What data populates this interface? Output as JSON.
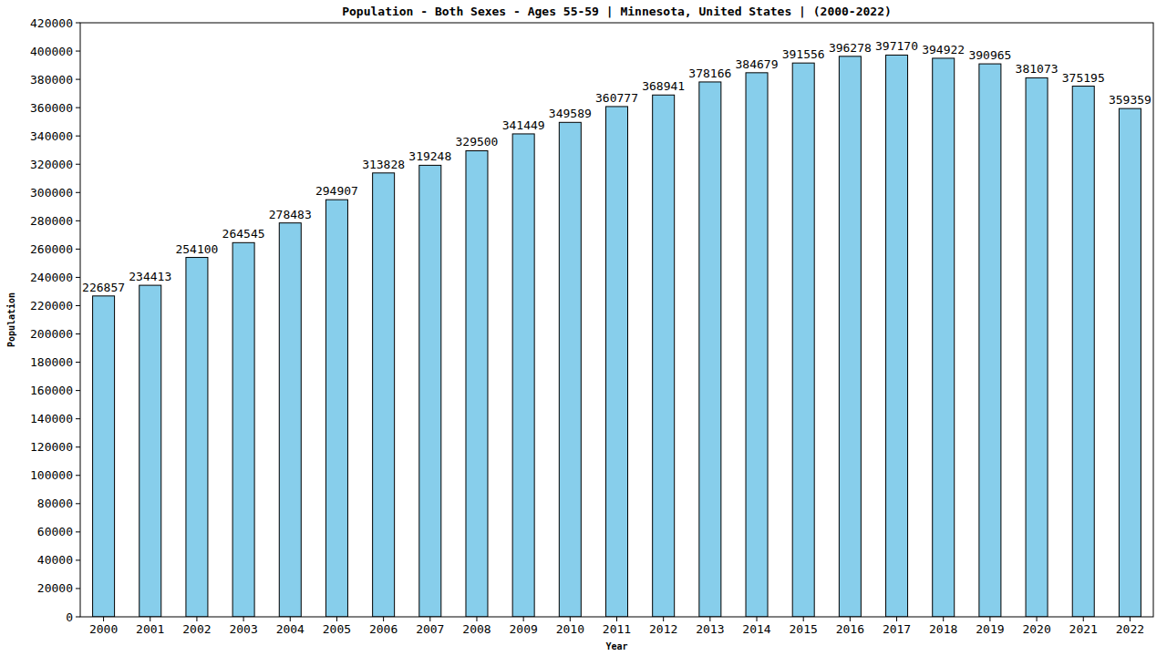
{
  "chart_data": {
    "type": "bar",
    "title": "Population - Both Sexes - Ages 55-59 | Minnesota, United States |  (2000-2022)",
    "x_label": "Year",
    "y_label": "Population",
    "categories": [
      "2000",
      "2001",
      "2002",
      "2003",
      "2004",
      "2005",
      "2006",
      "2007",
      "2008",
      "2009",
      "2010",
      "2011",
      "2012",
      "2013",
      "2014",
      "2015",
      "2016",
      "2017",
      "2018",
      "2019",
      "2020",
      "2021",
      "2022"
    ],
    "values": [
      226857,
      234413,
      254100,
      264545,
      278483,
      294907,
      313828,
      319248,
      329500,
      341449,
      349589,
      360777,
      368941,
      378166,
      384679,
      391556,
      396278,
      397170,
      394922,
      390965,
      381073,
      375195,
      359359
    ],
    "color": "#87ceeb",
    "ylim": [
      0,
      420000
    ],
    "yticks": [
      0,
      20000,
      40000,
      60000,
      80000,
      100000,
      120000,
      140000,
      160000,
      180000,
      200000,
      220000,
      240000,
      260000,
      280000,
      300000,
      320000,
      340000,
      360000,
      380000,
      400000,
      420000
    ],
    "grid": false,
    "data_labels": true
  }
}
